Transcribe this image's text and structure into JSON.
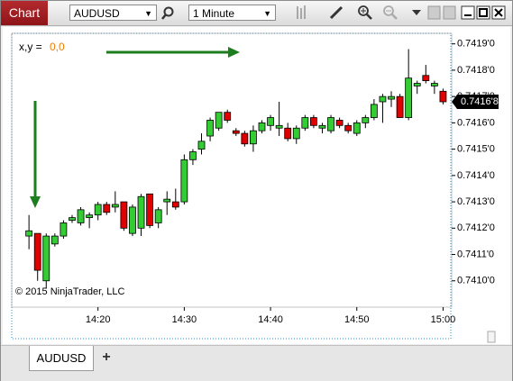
{
  "toolbar": {
    "title": "Chart",
    "instrument": "AUDUSD",
    "interval": "1 Minute"
  },
  "chart_data": {
    "type": "candlestick",
    "crosshair_label": "x,y =",
    "crosshair_value": "0,0",
    "copyright": "© 2015 NinjaTrader, LLC",
    "up_color": "#33cc33",
    "down_color": "#e00000",
    "grid": false,
    "x": [
      "14:12",
      "14:13",
      "14:14",
      "14:15",
      "14:16",
      "14:17",
      "14:18",
      "14:19",
      "14:20",
      "14:21",
      "14:22",
      "14:23",
      "14:24",
      "14:25",
      "14:26",
      "14:27",
      "14:28",
      "14:29",
      "14:30",
      "14:31",
      "14:32",
      "14:33",
      "14:34",
      "14:35",
      "14:36",
      "14:37",
      "14:38",
      "14:39",
      "14:40",
      "14:41",
      "14:42",
      "14:43",
      "14:44",
      "14:45",
      "14:46",
      "14:47",
      "14:48",
      "14:49",
      "14:50",
      "14:51",
      "14:52",
      "14:53",
      "14:54",
      "14:55",
      "14:56",
      "14:57",
      "14:58",
      "14:59",
      "15:00"
    ],
    "open": [
      0.74117,
      0.74118,
      0.741,
      0.74114,
      0.74117,
      0.74123,
      0.74122,
      0.74124,
      0.74125,
      0.74129,
      0.74128,
      0.7413,
      0.74118,
      0.7412,
      0.74133,
      0.74122,
      0.7413,
      0.7413,
      0.7413,
      0.74146,
      0.7415,
      0.74155,
      0.74158,
      0.74164,
      0.74157,
      0.74156,
      0.74152,
      0.74157,
      0.74159,
      0.74158,
      0.74158,
      0.74154,
      0.74158,
      0.74162,
      0.74158,
      0.74157,
      0.74161,
      0.74159,
      0.74156,
      0.7416,
      0.74162,
      0.74168,
      0.74169,
      0.7417,
      0.74162,
      0.74174,
      0.74178,
      0.74174,
      0.74172
    ],
    "high": [
      0.74125,
      0.74118,
      0.74118,
      0.74118,
      0.74123,
      0.74125,
      0.74128,
      0.74126,
      0.7413,
      0.7413,
      0.74134,
      0.7413,
      0.74129,
      0.74133,
      0.74133,
      0.74128,
      0.74134,
      0.74135,
      0.74148,
      0.7415,
      0.74156,
      0.74162,
      0.74164,
      0.74165,
      0.74158,
      0.74157,
      0.74159,
      0.74161,
      0.74163,
      0.74168,
      0.7416,
      0.74159,
      0.74163,
      0.74163,
      0.7416,
      0.74163,
      0.74162,
      0.7416,
      0.74161,
      0.74163,
      0.74169,
      0.74171,
      0.74172,
      0.74171,
      0.74188,
      0.74176,
      0.74182,
      0.74176,
      0.74173
    ],
    "low": [
      0.74112,
      0.741,
      0.74097,
      0.74113,
      0.74116,
      0.74122,
      0.74121,
      0.7412,
      0.74123,
      0.74125,
      0.74126,
      0.74119,
      0.74117,
      0.74117,
      0.7412,
      0.7412,
      0.74125,
      0.74127,
      0.74129,
      0.74144,
      0.74148,
      0.74153,
      0.74157,
      0.7416,
      0.74155,
      0.74151,
      0.74149,
      0.74156,
      0.74157,
      0.74155,
      0.74153,
      0.74152,
      0.74157,
      0.74158,
      0.74156,
      0.74156,
      0.74158,
      0.74156,
      0.74155,
      0.74158,
      0.74161,
      0.7416,
      0.74166,
      0.74162,
      0.74161,
      0.74171,
      0.74175,
      0.74171,
      0.74167
    ],
    "close": [
      0.74119,
      0.74104,
      0.74117,
      0.74117,
      0.74122,
      0.74124,
      0.74127,
      0.74125,
      0.74129,
      0.74126,
      0.74129,
      0.7412,
      0.74128,
      0.74132,
      0.74121,
      0.74127,
      0.74131,
      0.74128,
      0.74146,
      0.74149,
      0.74153,
      0.74161,
      0.74164,
      0.74161,
      0.74156,
      0.74152,
      0.74157,
      0.7416,
      0.74162,
      0.74159,
      0.74154,
      0.74158,
      0.74162,
      0.74159,
      0.74159,
      0.74162,
      0.74159,
      0.74157,
      0.7416,
      0.74162,
      0.74167,
      0.7417,
      0.7417,
      0.74162,
      0.74177,
      0.74175,
      0.74176,
      0.74175,
      0.74168
    ],
    "xlim": [
      "14:10",
      "15:01"
    ],
    "xticks": [
      "14:20",
      "14:30",
      "14:40",
      "14:50",
      "15:00"
    ],
    "ylim": [
      0.7409,
      0.74194
    ],
    "yticks": [
      {
        "value": 0.741,
        "label": "0.7410'0"
      },
      {
        "value": 0.7411,
        "label": "0.7411'0"
      },
      {
        "value": 0.7412,
        "label": "0.7412'0"
      },
      {
        "value": 0.7413,
        "label": "0.7413'0"
      },
      {
        "value": 0.7414,
        "label": "0.7414'0"
      },
      {
        "value": 0.7415,
        "label": "0.7415'0"
      },
      {
        "value": 0.7416,
        "label": "0.7416'0"
      },
      {
        "value": 0.7417,
        "label": "0.7417'0"
      },
      {
        "value": 0.7418,
        "label": "0.7418'0"
      },
      {
        "value": 0.7419,
        "label": "0.7419'0"
      }
    ],
    "last_price": {
      "value": 0.74168,
      "label": "0.7416'8"
    }
  },
  "tabs": [
    "AUDUSD"
  ],
  "add_tab": "+"
}
